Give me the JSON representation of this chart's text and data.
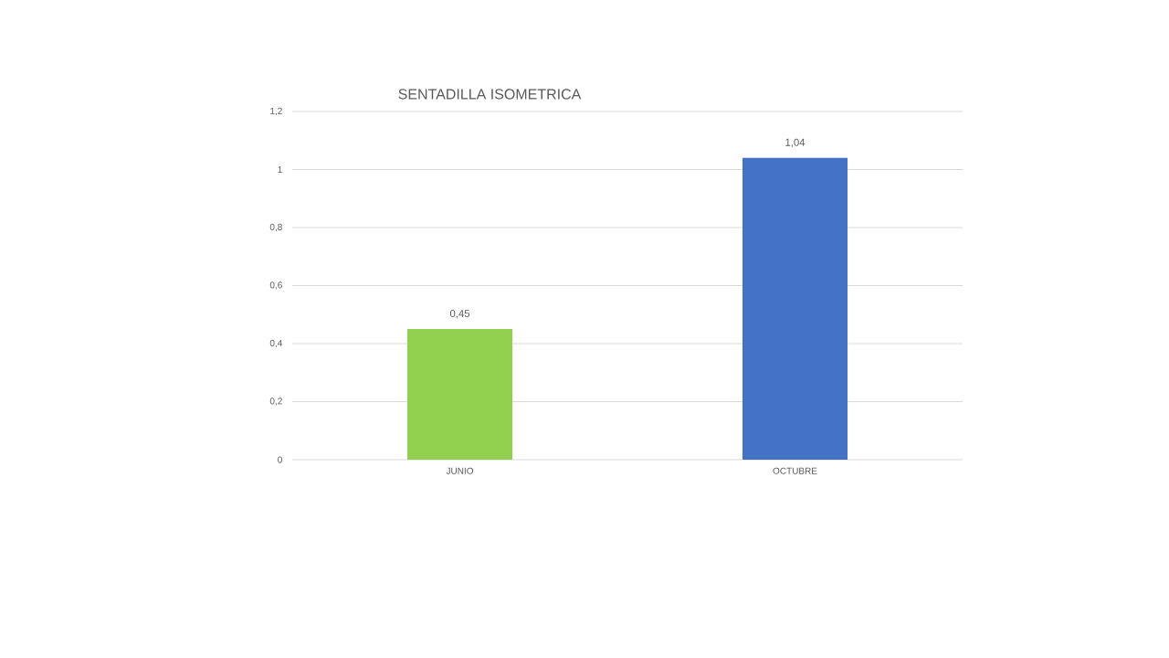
{
  "chart_data": {
    "type": "bar",
    "title": "SENTADILLA ISOMETRICA",
    "categories": [
      "JUNIO",
      "OCTUBRE"
    ],
    "values": [
      0.45,
      1.04
    ],
    "colors": [
      "#92d050",
      "#4472c4"
    ],
    "value_labels": [
      "0,45",
      "1,04"
    ],
    "ylim": [
      0,
      1.2
    ],
    "yticks": [
      0,
      {
        "value": 0.2,
        "label": "0,2"
      },
      {
        "value": 0.4,
        "label": "0,4"
      },
      {
        "value": 0.6,
        "label": "0,6"
      },
      {
        "value": 0.8,
        "label": "0,8"
      },
      1,
      {
        "value": 1.2,
        "label": "1,2"
      }
    ],
    "grid": "y"
  }
}
